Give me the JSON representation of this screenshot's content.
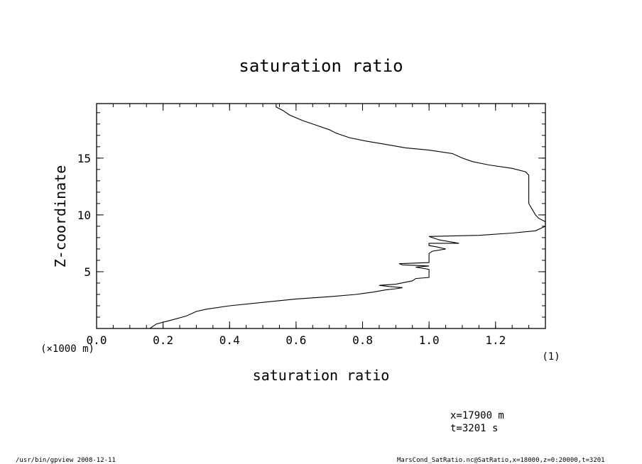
{
  "chart_data": {
    "type": "line",
    "title": "saturation ratio",
    "xlabel": "saturation ratio",
    "ylabel": "Z-coordinate",
    "x_unit_label": "(1)",
    "y_unit_label": "(×1000 m)",
    "xlim": [
      0.0,
      1.35
    ],
    "ylim": [
      0,
      19.8
    ],
    "x_tick_labels": [
      "0.0",
      "0.2",
      "0.4",
      "0.6",
      "0.8",
      "1.0",
      "1.2"
    ],
    "x_ticks": [
      0.0,
      0.2,
      0.4,
      0.6,
      0.8,
      1.0,
      1.2
    ],
    "y_tick_labels": [
      "5",
      "10",
      "15"
    ],
    "y_ticks": [
      5,
      10,
      15
    ],
    "grid": false,
    "series": [
      {
        "points": [
          [
            0.16,
            0.0
          ],
          [
            0.18,
            0.4
          ],
          [
            0.22,
            0.7
          ],
          [
            0.27,
            1.1
          ],
          [
            0.3,
            1.5
          ],
          [
            0.33,
            1.7
          ],
          [
            0.4,
            2.0
          ],
          [
            0.5,
            2.3
          ],
          [
            0.6,
            2.6
          ],
          [
            0.7,
            2.8
          ],
          [
            0.78,
            3.0
          ],
          [
            0.83,
            3.2
          ],
          [
            0.87,
            3.4
          ],
          [
            0.9,
            3.5
          ],
          [
            0.92,
            3.6
          ],
          [
            0.88,
            3.7
          ],
          [
            0.85,
            3.8
          ],
          [
            0.9,
            3.9
          ],
          [
            0.95,
            4.2
          ],
          [
            0.96,
            4.4
          ],
          [
            1.0,
            4.5
          ],
          [
            1.0,
            5.2
          ],
          [
            0.96,
            5.4
          ],
          [
            1.0,
            5.5
          ],
          [
            0.92,
            5.6
          ],
          [
            0.91,
            5.7
          ],
          [
            1.0,
            5.8
          ],
          [
            1.0,
            6.6
          ],
          [
            1.01,
            6.8
          ],
          [
            1.05,
            7.0
          ],
          [
            1.02,
            7.2
          ],
          [
            1.0,
            7.3
          ],
          [
            1.0,
            7.5
          ],
          [
            1.09,
            7.5
          ],
          [
            1.03,
            7.8
          ],
          [
            1.01,
            8.0
          ],
          [
            1.0,
            8.1
          ],
          [
            1.15,
            8.2
          ],
          [
            1.25,
            8.4
          ],
          [
            1.32,
            8.6
          ],
          [
            1.35,
            9.0
          ],
          [
            1.35,
            9.4
          ],
          [
            1.33,
            9.7
          ],
          [
            1.32,
            10.0
          ],
          [
            1.31,
            10.5
          ],
          [
            1.3,
            11.0
          ],
          [
            1.3,
            12.0
          ],
          [
            1.3,
            13.0
          ],
          [
            1.3,
            13.5
          ],
          [
            1.29,
            13.8
          ],
          [
            1.25,
            14.1
          ],
          [
            1.18,
            14.4
          ],
          [
            1.13,
            14.7
          ],
          [
            1.1,
            15.0
          ],
          [
            1.07,
            15.4
          ],
          [
            1.0,
            15.7
          ],
          [
            0.93,
            15.9
          ],
          [
            0.87,
            16.2
          ],
          [
            0.81,
            16.5
          ],
          [
            0.76,
            16.8
          ],
          [
            0.72,
            17.2
          ],
          [
            0.7,
            17.5
          ],
          [
            0.66,
            17.9
          ],
          [
            0.62,
            18.3
          ],
          [
            0.58,
            18.8
          ],
          [
            0.56,
            19.2
          ],
          [
            0.54,
            19.5
          ],
          [
            0.54,
            19.8
          ]
        ]
      }
    ]
  },
  "annotations": {
    "position_line": "x=17900  m",
    "time_line": "t=3201  s"
  },
  "footer": {
    "program": "/usr/bin/gpview   2008-12-11",
    "source": "MarsCond_SatRatio.nc@SatRatio,x=18000,z=0:20000,t=3201"
  },
  "colors": {
    "line": "#000000",
    "background": "#ffffff"
  }
}
